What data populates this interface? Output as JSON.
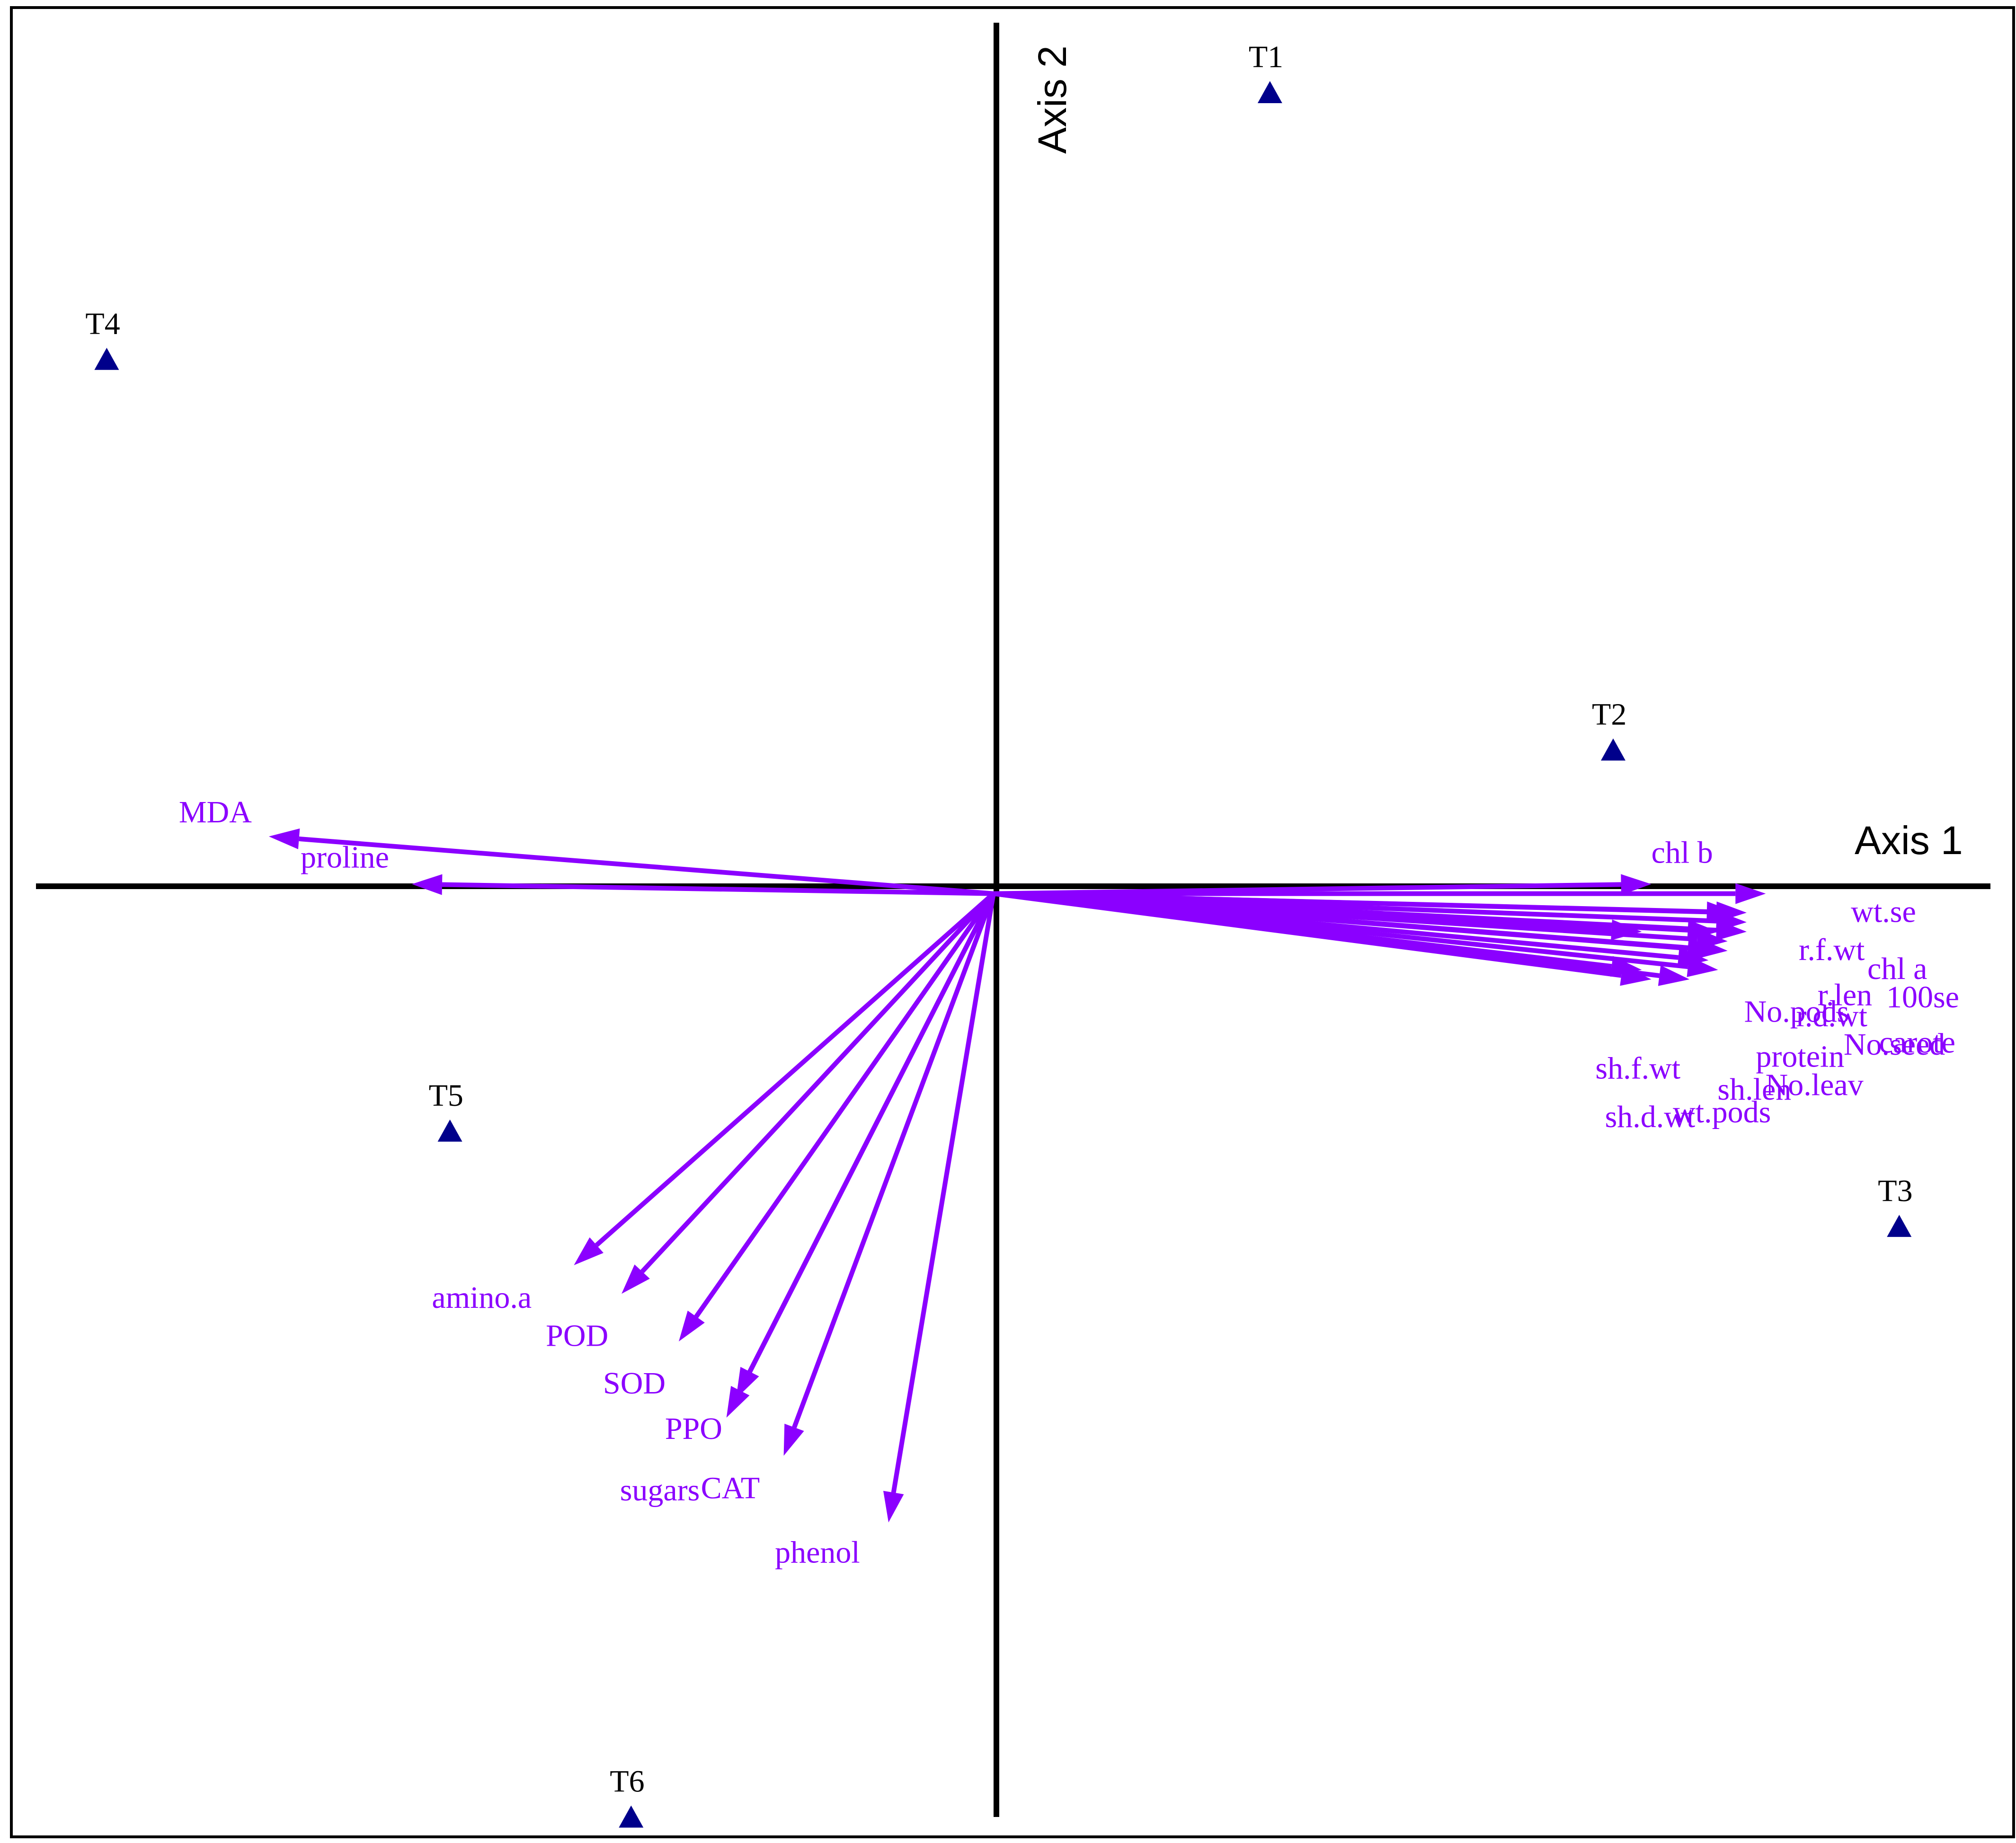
{
  "colors": {
    "arrow": "#8b00ff",
    "site": "#00008b",
    "axis": "#000000",
    "frame": "#000000"
  },
  "chart_data": {
    "type": "scatter",
    "title": "",
    "xlabel": "Axis 1",
    "ylabel": "Axis 2",
    "xlim": [
      -1.03,
      1.07
    ],
    "ylim": [
      -0.99,
      0.93
    ],
    "grid": false,
    "legend": "none",
    "sites": [
      {
        "label": "T1",
        "x": 0.29,
        "y": 0.84
      },
      {
        "label": "T2",
        "x": 0.65,
        "y": 0.15
      },
      {
        "label": "T3",
        "x": 0.95,
        "y": -0.35
      },
      {
        "label": "T4",
        "x": -0.93,
        "y": 0.56
      },
      {
        "label": "T5",
        "x": -0.57,
        "y": -0.25
      },
      {
        "label": "T6",
        "x": -0.38,
        "y": -0.97
      }
    ],
    "vectors": [
      {
        "label": "MDA",
        "x": -0.76,
        "y": 0.06
      },
      {
        "label": "proline",
        "x": -0.61,
        "y": 0.01
      },
      {
        "label": "chl b",
        "x": 0.69,
        "y": 0.01
      },
      {
        "label": "wt.se",
        "x": 0.81,
        "y": 0.0
      },
      {
        "label": "r.f.wt",
        "x": 0.79,
        "y": -0.02
      },
      {
        "label": "chl a",
        "x": 0.79,
        "y": -0.03
      },
      {
        "label": "100se",
        "x": 0.79,
        "y": -0.04
      },
      {
        "label": "r.len",
        "x": 0.77,
        "y": -0.05
      },
      {
        "label": "No.pods",
        "x": 0.76,
        "y": -0.06
      },
      {
        "label": "carote",
        "x": 0.77,
        "y": -0.06
      },
      {
        "label": "r.d.wt",
        "x": 0.76,
        "y": -0.04
      },
      {
        "label": "No.seed",
        "x": 0.78,
        "y": -0.02
      },
      {
        "label": "protein",
        "x": 0.75,
        "y": -0.07
      },
      {
        "label": "No.leav",
        "x": 0.76,
        "y": -0.08
      },
      {
        "label": "wt.pods",
        "x": 0.73,
        "y": -0.09
      },
      {
        "label": "sh.len",
        "x": 0.68,
        "y": -0.04
      },
      {
        "label": "sh.f.wt",
        "x": 0.68,
        "y": -0.08
      },
      {
        "label": "sh.d.wt",
        "x": 0.69,
        "y": -0.09
      },
      {
        "label": "amino.a",
        "x": -0.44,
        "y": -0.39
      },
      {
        "label": "POD",
        "x": -0.39,
        "y": -0.42
      },
      {
        "label": "SOD",
        "x": -0.33,
        "y": -0.47
      },
      {
        "label": "PPO",
        "x": -0.27,
        "y": -0.53
      },
      {
        "label": "sugars",
        "x": -0.28,
        "y": -0.55
      },
      {
        "label": "CAT",
        "x": -0.22,
        "y": -0.59
      },
      {
        "label": "phenol",
        "x": -0.11,
        "y": -0.66
      }
    ]
  }
}
